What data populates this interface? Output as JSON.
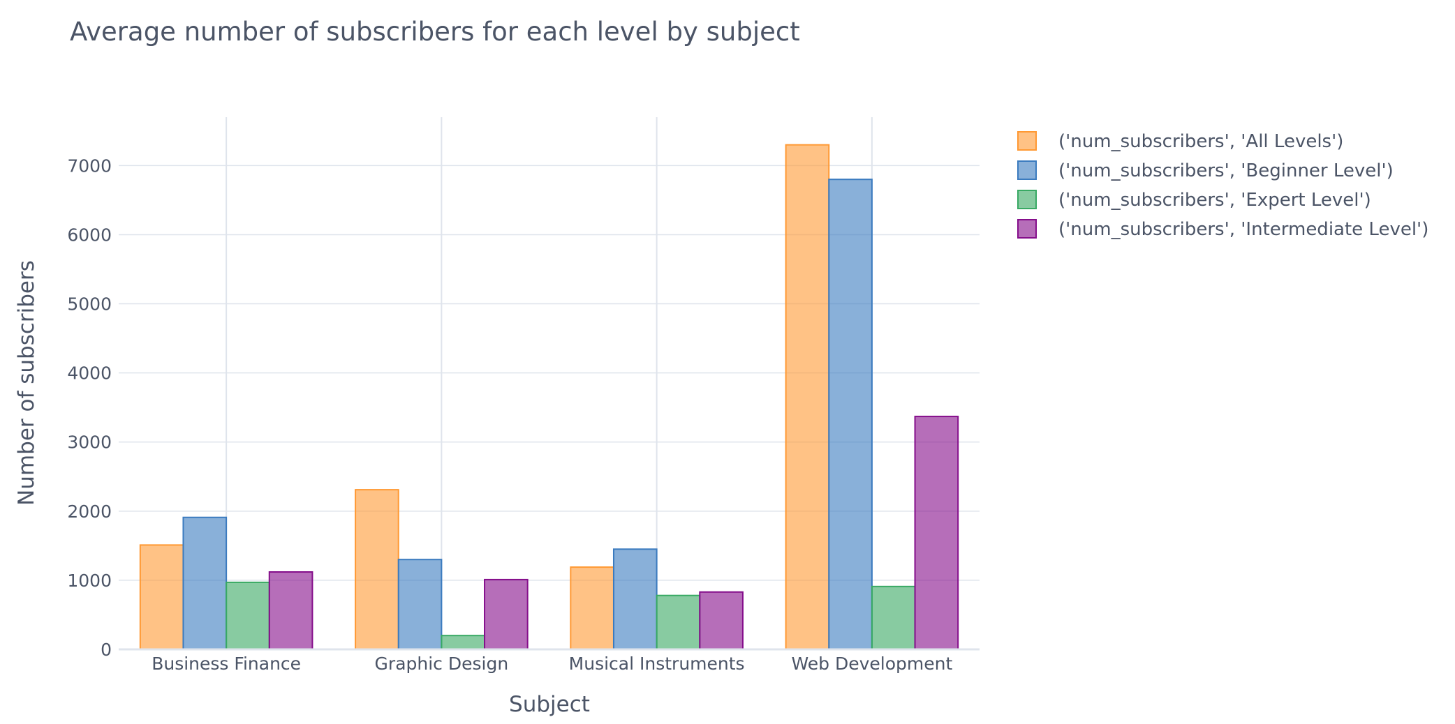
{
  "chart_data": {
    "type": "bar",
    "title": "Average number of subscribers for each level by subject",
    "xlabel": "Subject",
    "ylabel": "Number of subscribers",
    "categories": [
      "Business Finance",
      "Graphic Design",
      "Musical Instruments",
      "Web Development"
    ],
    "ylim": [
      0,
      7700
    ],
    "yticks": [
      0,
      1000,
      2000,
      3000,
      4000,
      5000,
      6000,
      7000
    ],
    "grid": true,
    "legend_position": "top-right",
    "series": [
      {
        "name": "('num_subscribers', 'All Levels')",
        "color": "#ff9933",
        "values": [
          1510,
          2310,
          1190,
          7300
        ]
      },
      {
        "name": "('num_subscribers', 'Beginner Level')",
        "color": "#3b7bbf",
        "values": [
          1910,
          1300,
          1450,
          6800
        ]
      },
      {
        "name": "('num_subscribers', 'Expert Level')",
        "color": "#38a963",
        "values": [
          970,
          200,
          780,
          910
        ]
      },
      {
        "name": "('num_subscribers', 'Intermediate Level')",
        "color": "#850e8b",
        "values": [
          1120,
          1010,
          830,
          3370
        ]
      }
    ]
  }
}
